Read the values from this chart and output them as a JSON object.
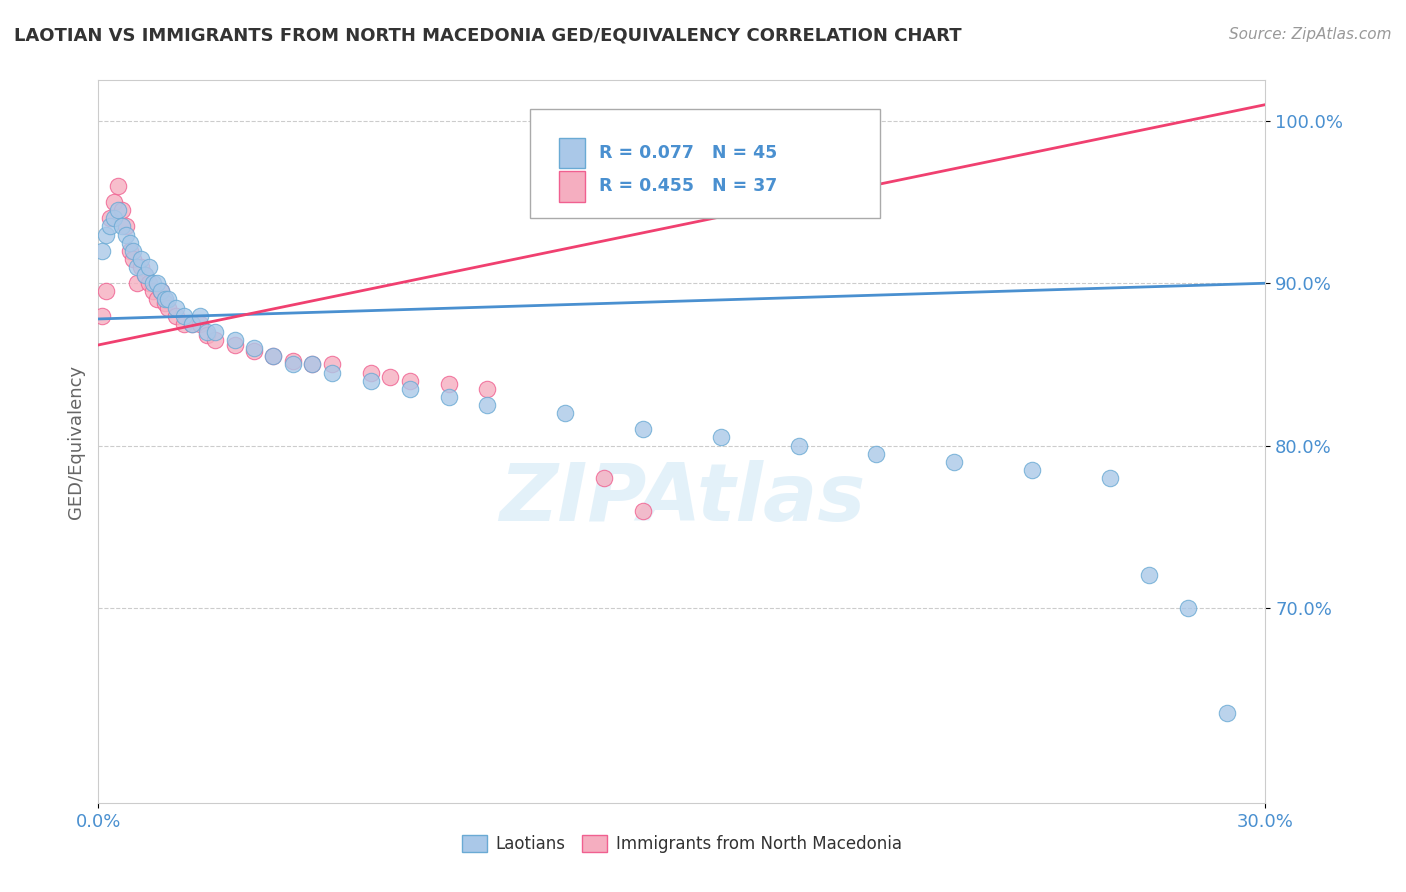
{
  "title": "LAOTIAN VS IMMIGRANTS FROM NORTH MACEDONIA GED/EQUIVALENCY CORRELATION CHART",
  "source_text": "Source: ZipAtlas.com",
  "ylabel_text": "GED/Equivalency",
  "watermark": "ZIPAtlas",
  "x_min": 0.0,
  "x_max": 0.3,
  "y_min": 0.58,
  "y_max": 1.025,
  "x_ticks": [
    0.0,
    0.3
  ],
  "x_tick_labels": [
    "0.0%",
    "30.0%"
  ],
  "y_ticks": [
    0.7,
    0.8,
    0.9,
    1.0
  ],
  "y_tick_labels": [
    "70.0%",
    "80.0%",
    "90.0%",
    "100.0%"
  ],
  "laotian_color": "#aac8e8",
  "macedonia_color": "#f5aec0",
  "laotian_edge_color": "#6aaad4",
  "macedonia_edge_color": "#f06090",
  "laotian_line_color": "#4a90d0",
  "macedonia_line_color": "#f04070",
  "legend_R1": "R = 0.077",
  "legend_N1": "N = 45",
  "legend_R2": "R = 0.455",
  "legend_N2": "N = 37",
  "legend_label1": "Laotians",
  "legend_label2": "Immigrants from North Macedonia",
  "laotian_x": [
    0.001,
    0.002,
    0.003,
    0.004,
    0.005,
    0.006,
    0.007,
    0.008,
    0.009,
    0.01,
    0.011,
    0.012,
    0.013,
    0.014,
    0.015,
    0.016,
    0.017,
    0.018,
    0.02,
    0.022,
    0.024,
    0.026,
    0.028,
    0.03,
    0.035,
    0.04,
    0.045,
    0.05,
    0.055,
    0.06,
    0.07,
    0.08,
    0.09,
    0.1,
    0.12,
    0.14,
    0.16,
    0.18,
    0.2,
    0.22,
    0.24,
    0.26,
    0.27,
    0.28,
    0.29
  ],
  "laotian_y": [
    0.92,
    0.93,
    0.935,
    0.94,
    0.945,
    0.935,
    0.93,
    0.925,
    0.92,
    0.91,
    0.915,
    0.905,
    0.91,
    0.9,
    0.9,
    0.895,
    0.89,
    0.89,
    0.885,
    0.88,
    0.875,
    0.88,
    0.87,
    0.87,
    0.865,
    0.86,
    0.855,
    0.85,
    0.85,
    0.845,
    0.84,
    0.835,
    0.83,
    0.825,
    0.82,
    0.81,
    0.805,
    0.8,
    0.795,
    0.79,
    0.785,
    0.78,
    0.72,
    0.7,
    0.635
  ],
  "macedonia_x": [
    0.001,
    0.002,
    0.003,
    0.004,
    0.005,
    0.006,
    0.007,
    0.008,
    0.009,
    0.01,
    0.011,
    0.012,
    0.013,
    0.014,
    0.015,
    0.016,
    0.017,
    0.018,
    0.02,
    0.022,
    0.024,
    0.026,
    0.028,
    0.03,
    0.035,
    0.04,
    0.045,
    0.05,
    0.055,
    0.06,
    0.07,
    0.075,
    0.08,
    0.09,
    0.1,
    0.13,
    0.14
  ],
  "macedonia_y": [
    0.88,
    0.895,
    0.94,
    0.95,
    0.96,
    0.945,
    0.935,
    0.92,
    0.915,
    0.9,
    0.91,
    0.905,
    0.9,
    0.895,
    0.89,
    0.895,
    0.888,
    0.885,
    0.88,
    0.875,
    0.875,
    0.875,
    0.868,
    0.865,
    0.862,
    0.858,
    0.855,
    0.852,
    0.85,
    0.85,
    0.845,
    0.842,
    0.84,
    0.838,
    0.835,
    0.78,
    0.76
  ],
  "trend_laotian_x0": 0.0,
  "trend_laotian_y0": 0.878,
  "trend_laotian_x1": 0.3,
  "trend_laotian_y1": 0.9,
  "trend_macedonia_x0": 0.0,
  "trend_macedonia_y0": 0.862,
  "trend_macedonia_x1": 0.3,
  "trend_macedonia_y1": 1.01,
  "background_color": "#ffffff",
  "grid_color": "#cccccc",
  "title_color": "#333333",
  "axis_label_color": "#666666",
  "tick_label_color": "#4a90d0",
  "source_color": "#999999"
}
